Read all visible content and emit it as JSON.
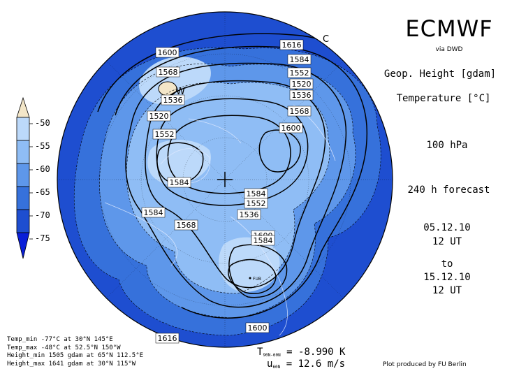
{
  "header": {
    "brand": "ECMWF",
    "via": "via DWD",
    "field1": "Geop. Height [gdam]",
    "field2": "Temperature [°C]",
    "level": "100 hPa",
    "forecast": "240 h forecast",
    "start_date": "05.12.10",
    "start_time": "12 UT",
    "to": "to",
    "end_date": "15.12.10",
    "end_time": "12 UT"
  },
  "legend": {
    "ticks": [
      "-50",
      "-55",
      "-60",
      "-65",
      "-70",
      "-75"
    ],
    "colors": [
      "#f3e6c8",
      "#bcd9fa",
      "#8fbdf5",
      "#5e97ea",
      "#3671db",
      "#1e4ed0",
      "#0a1fd8"
    ]
  },
  "map": {
    "contour_labels": [
      "1616",
      "1600",
      "1584",
      "1568",
      "1552",
      "1536",
      "1520",
      "1520",
      "1536",
      "1552",
      "1568",
      "1584",
      "1600",
      "1584",
      "1552",
      "1536",
      "1568",
      "1584",
      "1600",
      "1584",
      "1600",
      "1616"
    ],
    "marker_w": "W",
    "marker_c": "C",
    "city": "FUB"
  },
  "stats": {
    "line1": "Temp_min -77°C at 30°N 145°E",
    "line2": "Temp_max -48°C at 52.5°N 150°W",
    "line3": "Height_min 1505 gdam at 65°N 112.5°E",
    "line4": "Height_max 1641 gdam at 30°N 115°W"
  },
  "means": {
    "t_label": "T",
    "t_sub": "90N-60N",
    "t_value": "= -8.990 K",
    "u_label": "u",
    "u_sub": "60N",
    "u_value": "= 12.6 m/s"
  },
  "footer": {
    "credit": "Plot produced by FU Berlin"
  }
}
